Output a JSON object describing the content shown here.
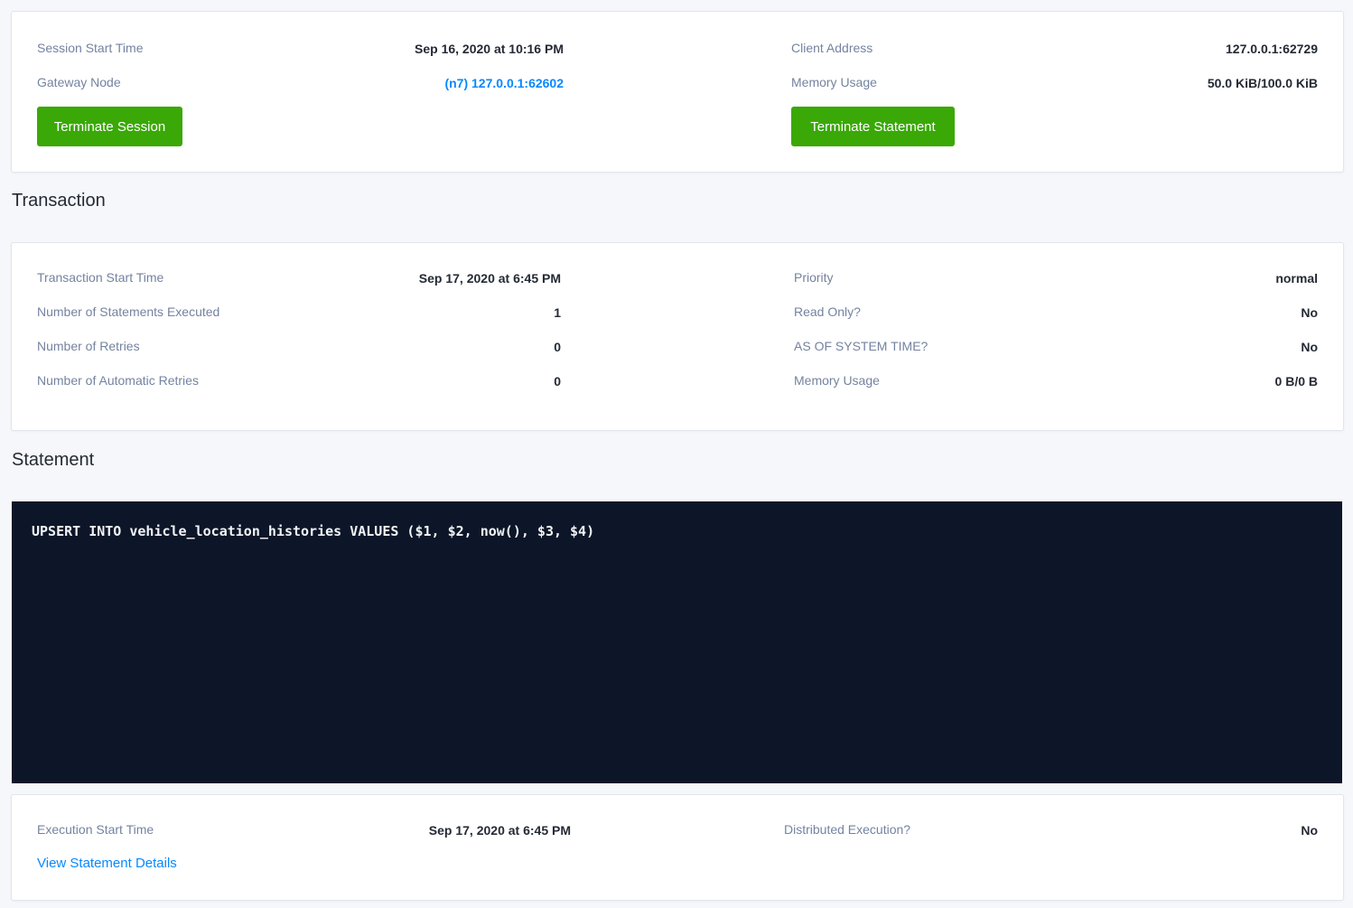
{
  "session": {
    "start_time_label": "Session Start Time",
    "start_time_value": "Sep 16, 2020 at 10:16 PM",
    "gateway_label": "Gateway Node",
    "gateway_value": "(n7) 127.0.0.1:62602",
    "client_label": "Client Address",
    "client_value": "127.0.0.1:62729",
    "memory_label": "Memory Usage",
    "memory_value": "50.0 KiB/100.0 KiB",
    "terminate_session": "Terminate Session",
    "terminate_statement": "Terminate Statement"
  },
  "transaction": {
    "heading": "Transaction",
    "left": [
      {
        "label": "Transaction Start Time",
        "value": "Sep 17, 2020 at 6:45 PM"
      },
      {
        "label": "Number of Statements Executed",
        "value": "1"
      },
      {
        "label": "Number of Retries",
        "value": "0"
      },
      {
        "label": "Number of Automatic Retries",
        "value": "0"
      }
    ],
    "right": [
      {
        "label": "Priority",
        "value": "normal"
      },
      {
        "label": "Read Only?",
        "value": "No"
      },
      {
        "label": "AS OF SYSTEM TIME?",
        "value": "No"
      },
      {
        "label": "Memory Usage",
        "value": "0 B/0 B"
      }
    ]
  },
  "statement": {
    "heading": "Statement",
    "sql": "UPSERT INTO vehicle_location_histories VALUES ($1, $2, now(), $3, $4)",
    "exec_label": "Execution Start Time",
    "exec_value": "Sep 17, 2020 at 6:45 PM",
    "distributed_label": "Distributed Execution?",
    "distributed_value": "No",
    "details_link": "View Statement Details"
  },
  "colors": {
    "accent": "#0788ff",
    "button": "#3aa806",
    "code_bg": "#0d1628"
  }
}
